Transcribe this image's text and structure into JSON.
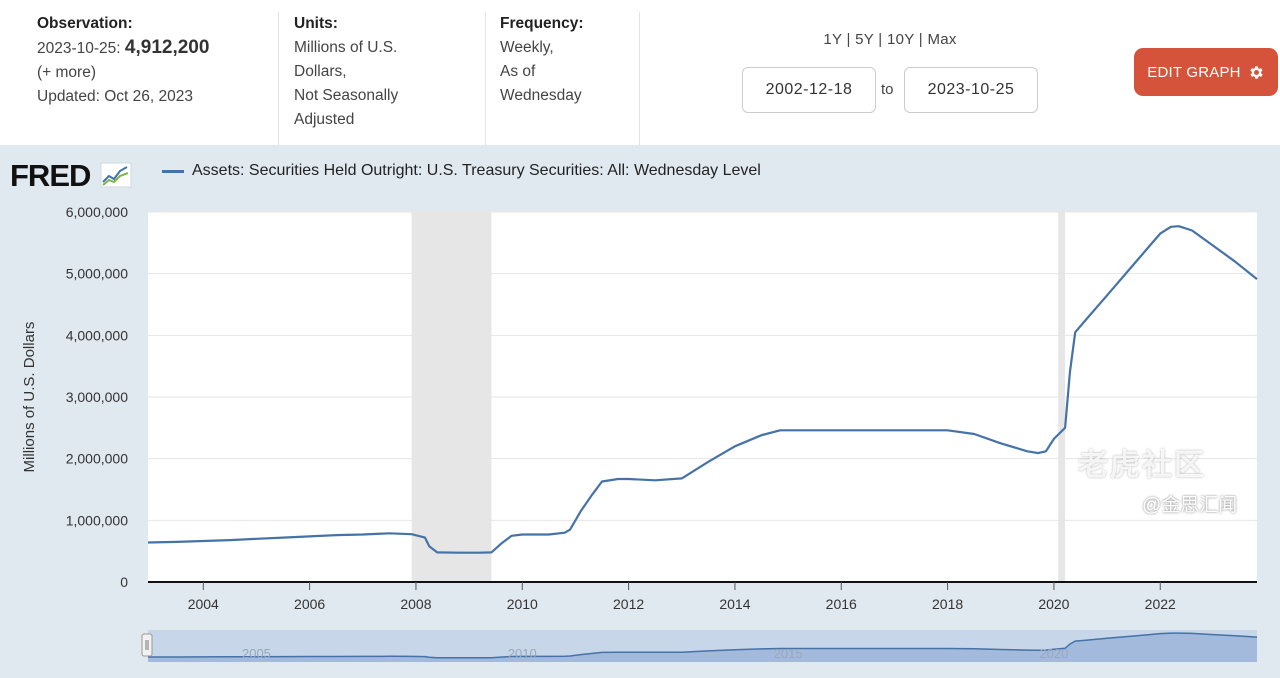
{
  "observation": {
    "label": "Observation:",
    "date": "2023-10-25:",
    "value": "4,912,200",
    "more": "(+ more)",
    "updated": "Updated: Oct 26, 2023"
  },
  "units": {
    "label": "Units:",
    "text": "Millions of U.S.\nDollars,\nNot Seasonally\nAdjusted"
  },
  "frequency": {
    "label": "Frequency:",
    "text": "Weekly,\nAs of\nWednesday"
  },
  "range_buttons": [
    "1Y",
    "5Y",
    "10Y",
    "Max"
  ],
  "date_range": {
    "start": "2002-12-18",
    "to": "to",
    "end": "2023-10-25"
  },
  "edit_button": {
    "label": "EDIT GRAPH",
    "color": "#d5533a"
  },
  "logo_text": "FRED",
  "watermarks": {
    "main": "老虎社区",
    "sub": "@金思汇闻"
  },
  "colors": {
    "series": "#4572a7",
    "recession": "#e6e6e6",
    "panel": "#e1e9f0"
  },
  "chart_data": {
    "type": "line",
    "title": "Assets: Securities Held Outright: U.S. Treasury Securities: All: Wednesday Level",
    "ylabel": "Millions of U.S. Dollars",
    "xlabel": "",
    "xlim": [
      2002.96,
      2023.82
    ],
    "ylim": [
      0,
      6000000
    ],
    "y_ticks": [
      0,
      1000000,
      2000000,
      3000000,
      4000000,
      5000000,
      6000000
    ],
    "y_tick_labels": [
      "0",
      "1,000,000",
      "2,000,000",
      "3,000,000",
      "4,000,000",
      "5,000,000",
      "6,000,000"
    ],
    "x_ticks": [
      2004,
      2006,
      2008,
      2010,
      2012,
      2014,
      2016,
      2018,
      2020,
      2022
    ],
    "x_tick_labels": [
      "2004",
      "2006",
      "2008",
      "2010",
      "2012",
      "2014",
      "2016",
      "2018",
      "2020",
      "2022"
    ],
    "recessions": [
      [
        2007.92,
        2009.42
      ],
      [
        2020.08,
        2020.21
      ]
    ],
    "series": [
      {
        "name": "Assets: Securities Held Outright: U.S. Treasury Securities: All: Wednesday Level",
        "x": [
          2002.96,
          2003.5,
          2004.0,
          2004.5,
          2005.0,
          2005.5,
          2006.0,
          2006.5,
          2007.0,
          2007.5,
          2007.92,
          2008.17,
          2008.25,
          2008.4,
          2008.8,
          2009.2,
          2009.42,
          2009.6,
          2009.8,
          2010.0,
          2010.5,
          2010.8,
          2010.9,
          2011.1,
          2011.3,
          2011.5,
          2011.8,
          2012.0,
          2012.5,
          2013.0,
          2013.5,
          2014.0,
          2014.5,
          2014.85,
          2015.5,
          2016.0,
          2016.5,
          2017.0,
          2017.5,
          2018.0,
          2018.5,
          2019.0,
          2019.5,
          2019.7,
          2019.85,
          2020.0,
          2020.21,
          2020.3,
          2020.4,
          2020.6,
          2021.0,
          2021.5,
          2021.8,
          2022.0,
          2022.2,
          2022.35,
          2022.6,
          2023.0,
          2023.4,
          2023.82
        ],
        "values": [
          640000,
          650000,
          665000,
          680000,
          700000,
          720000,
          740000,
          760000,
          770000,
          790000,
          775000,
          720000,
          580000,
          480000,
          475000,
          475000,
          480000,
          620000,
          750000,
          770000,
          770000,
          800000,
          850000,
          1150000,
          1400000,
          1630000,
          1670000,
          1670000,
          1650000,
          1680000,
          1950000,
          2200000,
          2380000,
          2460000,
          2460000,
          2460000,
          2460000,
          2460000,
          2460000,
          2460000,
          2400000,
          2250000,
          2120000,
          2090000,
          2120000,
          2320000,
          2500000,
          3400000,
          4050000,
          4250000,
          4650000,
          5150000,
          5450000,
          5650000,
          5760000,
          5770000,
          5700000,
          5450000,
          5200000,
          4912200
        ]
      }
    ]
  }
}
